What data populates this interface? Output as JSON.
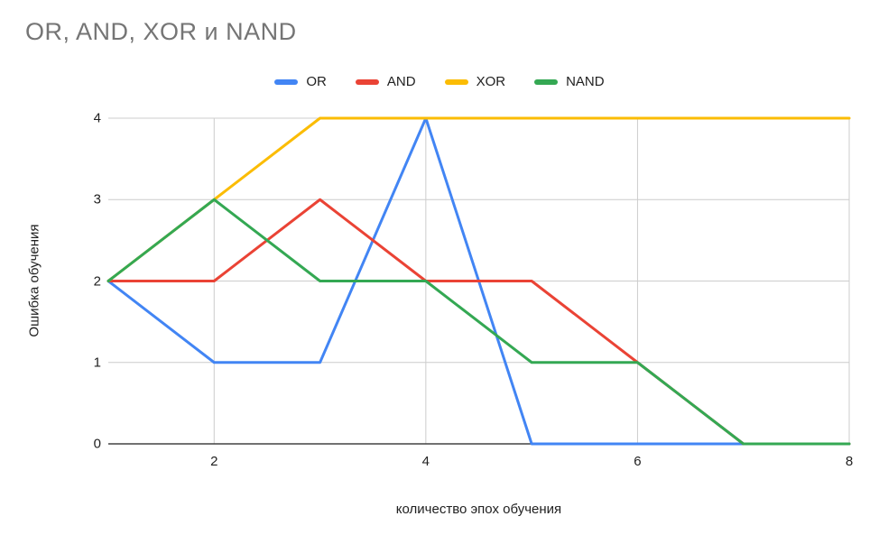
{
  "title": "OR, AND, XOR и NAND",
  "chart_data": {
    "type": "line",
    "x": [
      1,
      2,
      3,
      4,
      5,
      6,
      7,
      8
    ],
    "series": [
      {
        "name": "OR",
        "color": "#4285F4",
        "values": [
          2,
          1,
          1,
          4,
          0,
          0,
          0,
          0
        ]
      },
      {
        "name": "AND",
        "color": "#EA4335",
        "values": [
          2,
          2,
          3,
          2,
          2,
          1,
          0,
          0
        ]
      },
      {
        "name": "XOR",
        "color": "#FBBC04",
        "values": [
          2,
          3,
          4,
          4,
          4,
          4,
          4,
          4
        ]
      },
      {
        "name": "NAND",
        "color": "#34A853",
        "values": [
          2,
          3,
          2,
          2,
          1,
          1,
          0,
          0
        ]
      }
    ],
    "xlabel": "количество эпох обучения",
    "ylabel": "Ошибка обучения",
    "xlim": [
      1,
      8
    ],
    "ylim": [
      0,
      4
    ],
    "xticks": [
      2,
      4,
      6,
      8
    ],
    "yticks": [
      0,
      1,
      2,
      3,
      4
    ],
    "grid": true,
    "legend_position": "top"
  },
  "colors": {
    "grid": "#cccccc",
    "axis": "#424242",
    "title": "#757575",
    "background": "#ffffff"
  }
}
